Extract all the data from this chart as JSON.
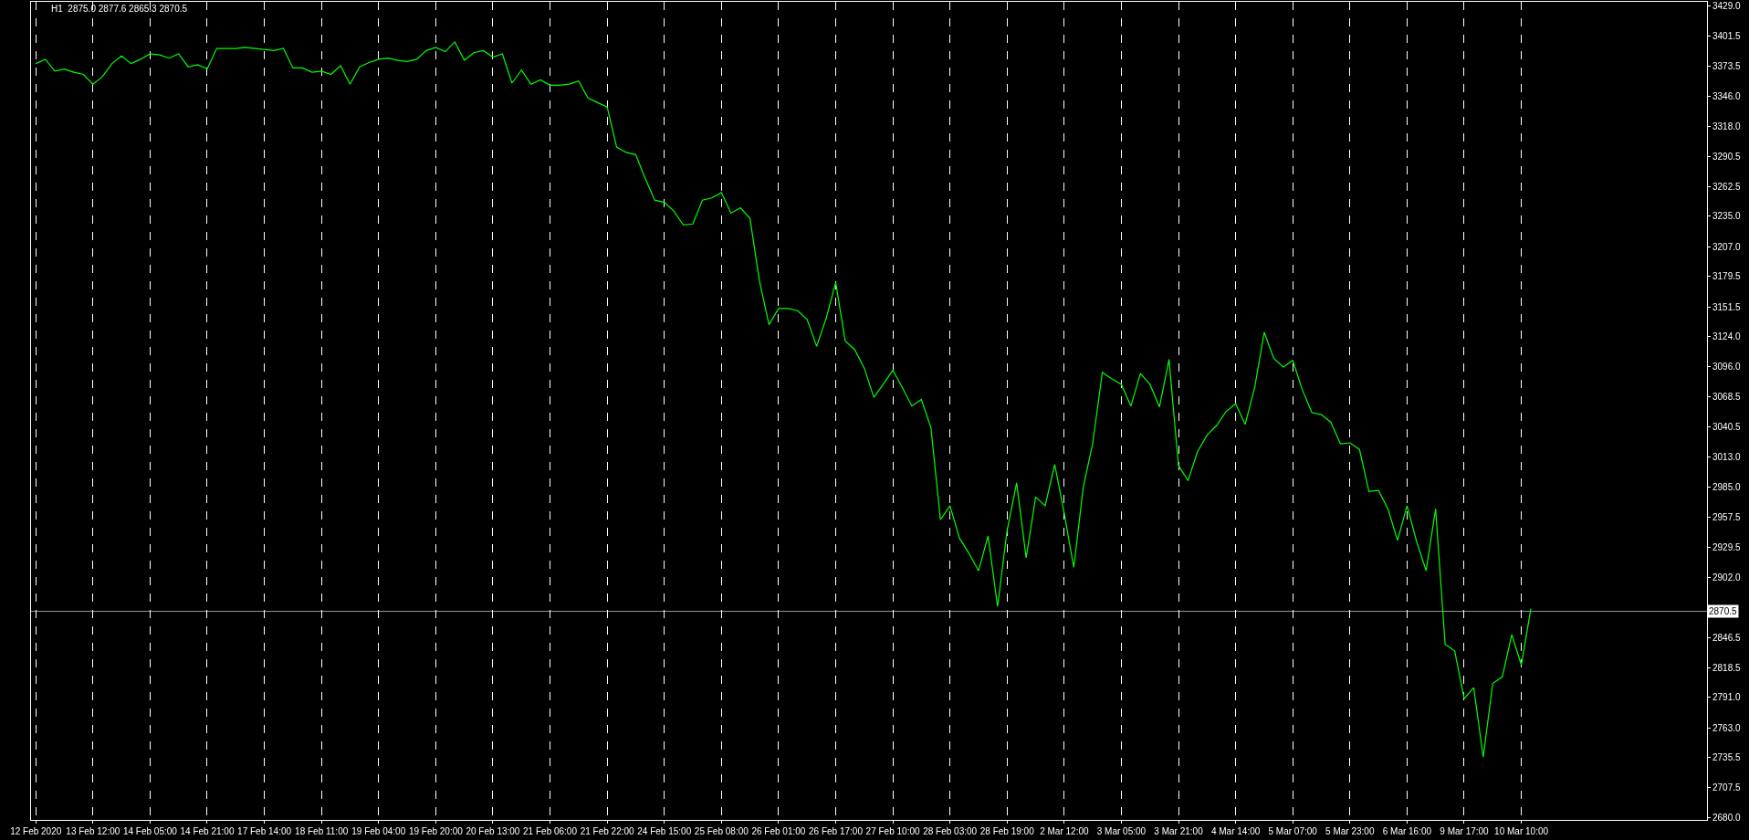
{
  "chart_data": {
    "type": "line",
    "title": "H1  2875.0 2877.6 2865.3 2870.5",
    "categories": [
      "12 Feb 2020",
      null,
      null,
      null,
      null,
      null,
      "13 Feb 12:00",
      null,
      null,
      null,
      null,
      null,
      "14 Feb 05:00",
      null,
      null,
      null,
      null,
      null,
      "14 Feb 21:00",
      null,
      null,
      null,
      null,
      null,
      "17 Feb 14:00",
      null,
      null,
      null,
      null,
      null,
      "18 Feb 11:00",
      null,
      null,
      null,
      null,
      null,
      "19 Feb 04:00",
      null,
      null,
      null,
      null,
      null,
      "19 Feb 20:00",
      null,
      null,
      null,
      null,
      null,
      "20 Feb 13:00",
      null,
      null,
      null,
      null,
      null,
      "21 Feb 06:00",
      null,
      null,
      null,
      null,
      null,
      "21 Feb 22:00",
      null,
      null,
      null,
      null,
      null,
      "24 Feb 15:00",
      null,
      null,
      null,
      null,
      null,
      "25 Feb 08:00",
      null,
      null,
      null,
      null,
      null,
      "26 Feb 01:00",
      null,
      null,
      null,
      null,
      null,
      "26 Feb 17:00",
      null,
      null,
      null,
      null,
      null,
      "27 Feb 10:00",
      null,
      null,
      null,
      null,
      null,
      "28 Feb 03:00",
      null,
      null,
      null,
      null,
      null,
      "28 Feb 19:00",
      null,
      null,
      null,
      null,
      null,
      "2 Mar 12:00",
      null,
      null,
      null,
      null,
      null,
      "3 Mar 05:00",
      null,
      null,
      null,
      null,
      null,
      "3 Mar 21:00",
      null,
      null,
      null,
      null,
      null,
      "4 Mar 14:00",
      null,
      null,
      null,
      null,
      null,
      "5 Mar 07:00",
      null,
      null,
      null,
      null,
      null,
      "5 Mar 23:00",
      null,
      null,
      null,
      null,
      null,
      "6 Mar 16:00",
      null,
      null,
      null,
      null,
      null,
      "9 Mar 17:00",
      null,
      null,
      null,
      null,
      null,
      "10 Mar 10:00",
      null,
      null,
      null,
      null,
      null,
      null,
      null,
      null,
      null,
      null,
      null,
      null,
      null,
      null,
      null,
      null,
      null,
      null,
      null
    ],
    "series": [
      {
        "color": "#00ff00",
        "values": [
          3376,
          3380,
          3369,
          3371,
          3368,
          3366,
          3357,
          3364,
          3376,
          3383,
          3376,
          3380,
          3385,
          3384,
          3381,
          3385,
          3373,
          3375,
          3371,
          3390,
          3390,
          3390,
          3391,
          3390,
          3389,
          3388,
          3390,
          3372,
          3372,
          3368,
          3369,
          3366,
          3374,
          3357,
          3373,
          3377,
          3380,
          3381,
          3379,
          3378,
          3380,
          3388,
          3391,
          3387,
          3396,
          3379,
          3386,
          3388,
          3382,
          3385,
          3358,
          3370,
          3357,
          3361,
          3356,
          3356,
          3357,
          3360,
          3344,
          3340,
          3336,
          3299,
          3294,
          3292,
          3270,
          3250,
          3248,
          3240,
          3227,
          3228,
          3250,
          3252,
          3257,
          3238,
          3243,
          3233,
          3175,
          3135,
          3150,
          3150,
          3148,
          3140,
          3115,
          3141,
          3174,
          3120,
          3112,
          3095,
          3068,
          3080,
          3093,
          3077,
          3060,
          3066,
          3040,
          2955,
          2968,
          2938,
          2924,
          2908,
          2940,
          2875,
          2945,
          2989,
          2920,
          2976,
          2968,
          3006,
          2961,
          2911,
          2985,
          3026,
          3091,
          3085,
          3080,
          3060,
          3090,
          3080,
          3059,
          3103,
          3005,
          2991,
          3018,
          3033,
          3042,
          3055,
          3062,
          3043,
          3077,
          3128,
          3104,
          3096,
          3102,
          3075,
          3054,
          3052,
          3045,
          3025,
          3026,
          3020,
          2981,
          2982,
          2965,
          2936,
          2968,
          2935,
          2908,
          2965,
          2840,
          2834,
          2790,
          2800,
          2736,
          2804,
          2810,
          2849,
          2821,
          2873,
          null,
          null,
          null,
          null,
          null,
          null,
          null,
          null,
          null,
          null,
          null,
          null,
          null,
          null,
          null,
          null,
          null,
          null
        ]
      }
    ],
    "ylim": [
      2678,
      3433
    ],
    "yticks": [
      {
        "value": 3429,
        "label": "3429.0"
      },
      {
        "value": 3401.5,
        "label": "3401.5"
      },
      {
        "value": 3373.5,
        "label": "3373.5"
      },
      {
        "value": 3346,
        "label": "3346.0"
      },
      {
        "value": 3318,
        "label": "3318.0"
      },
      {
        "value": 3290.5,
        "label": "3290.5"
      },
      {
        "value": 3262.5,
        "label": "3262.5"
      },
      {
        "value": 3235,
        "label": "3235.0"
      },
      {
        "value": 3207,
        "label": "3207.0"
      },
      {
        "value": 3179.5,
        "label": "3179.5"
      },
      {
        "value": 3151.5,
        "label": "3151.5"
      },
      {
        "value": 3124,
        "label": "3124.0"
      },
      {
        "value": 3096,
        "label": "3096.0"
      },
      {
        "value": 3068.5,
        "label": "3068.5"
      },
      {
        "value": 3040.5,
        "label": "3040.5"
      },
      {
        "value": 3013,
        "label": "3013.0"
      },
      {
        "value": 2985,
        "label": "2985.0"
      },
      {
        "value": 2957.5,
        "label": "2957.5"
      },
      {
        "value": 2929.5,
        "label": "2929.5"
      },
      {
        "value": 2902,
        "label": "2902.0"
      },
      {
        "value": 2846.5,
        "label": "2846.5"
      },
      {
        "value": 2818.5,
        "label": "2818.5"
      },
      {
        "value": 2791,
        "label": "2791.0"
      },
      {
        "value": 2763,
        "label": "2763.0"
      },
      {
        "value": 2735.5,
        "label": "2735.5"
      },
      {
        "value": 2707.5,
        "label": "2707.5"
      },
      {
        "value": 2680,
        "label": "2680.0"
      }
    ],
    "ref_lines": [
      {
        "axis": "y",
        "value": 2870.5,
        "label": "2870.5",
        "color": "#8c9aa8"
      }
    ],
    "grid": "x",
    "marker": "none",
    "line_style": "solid"
  }
}
